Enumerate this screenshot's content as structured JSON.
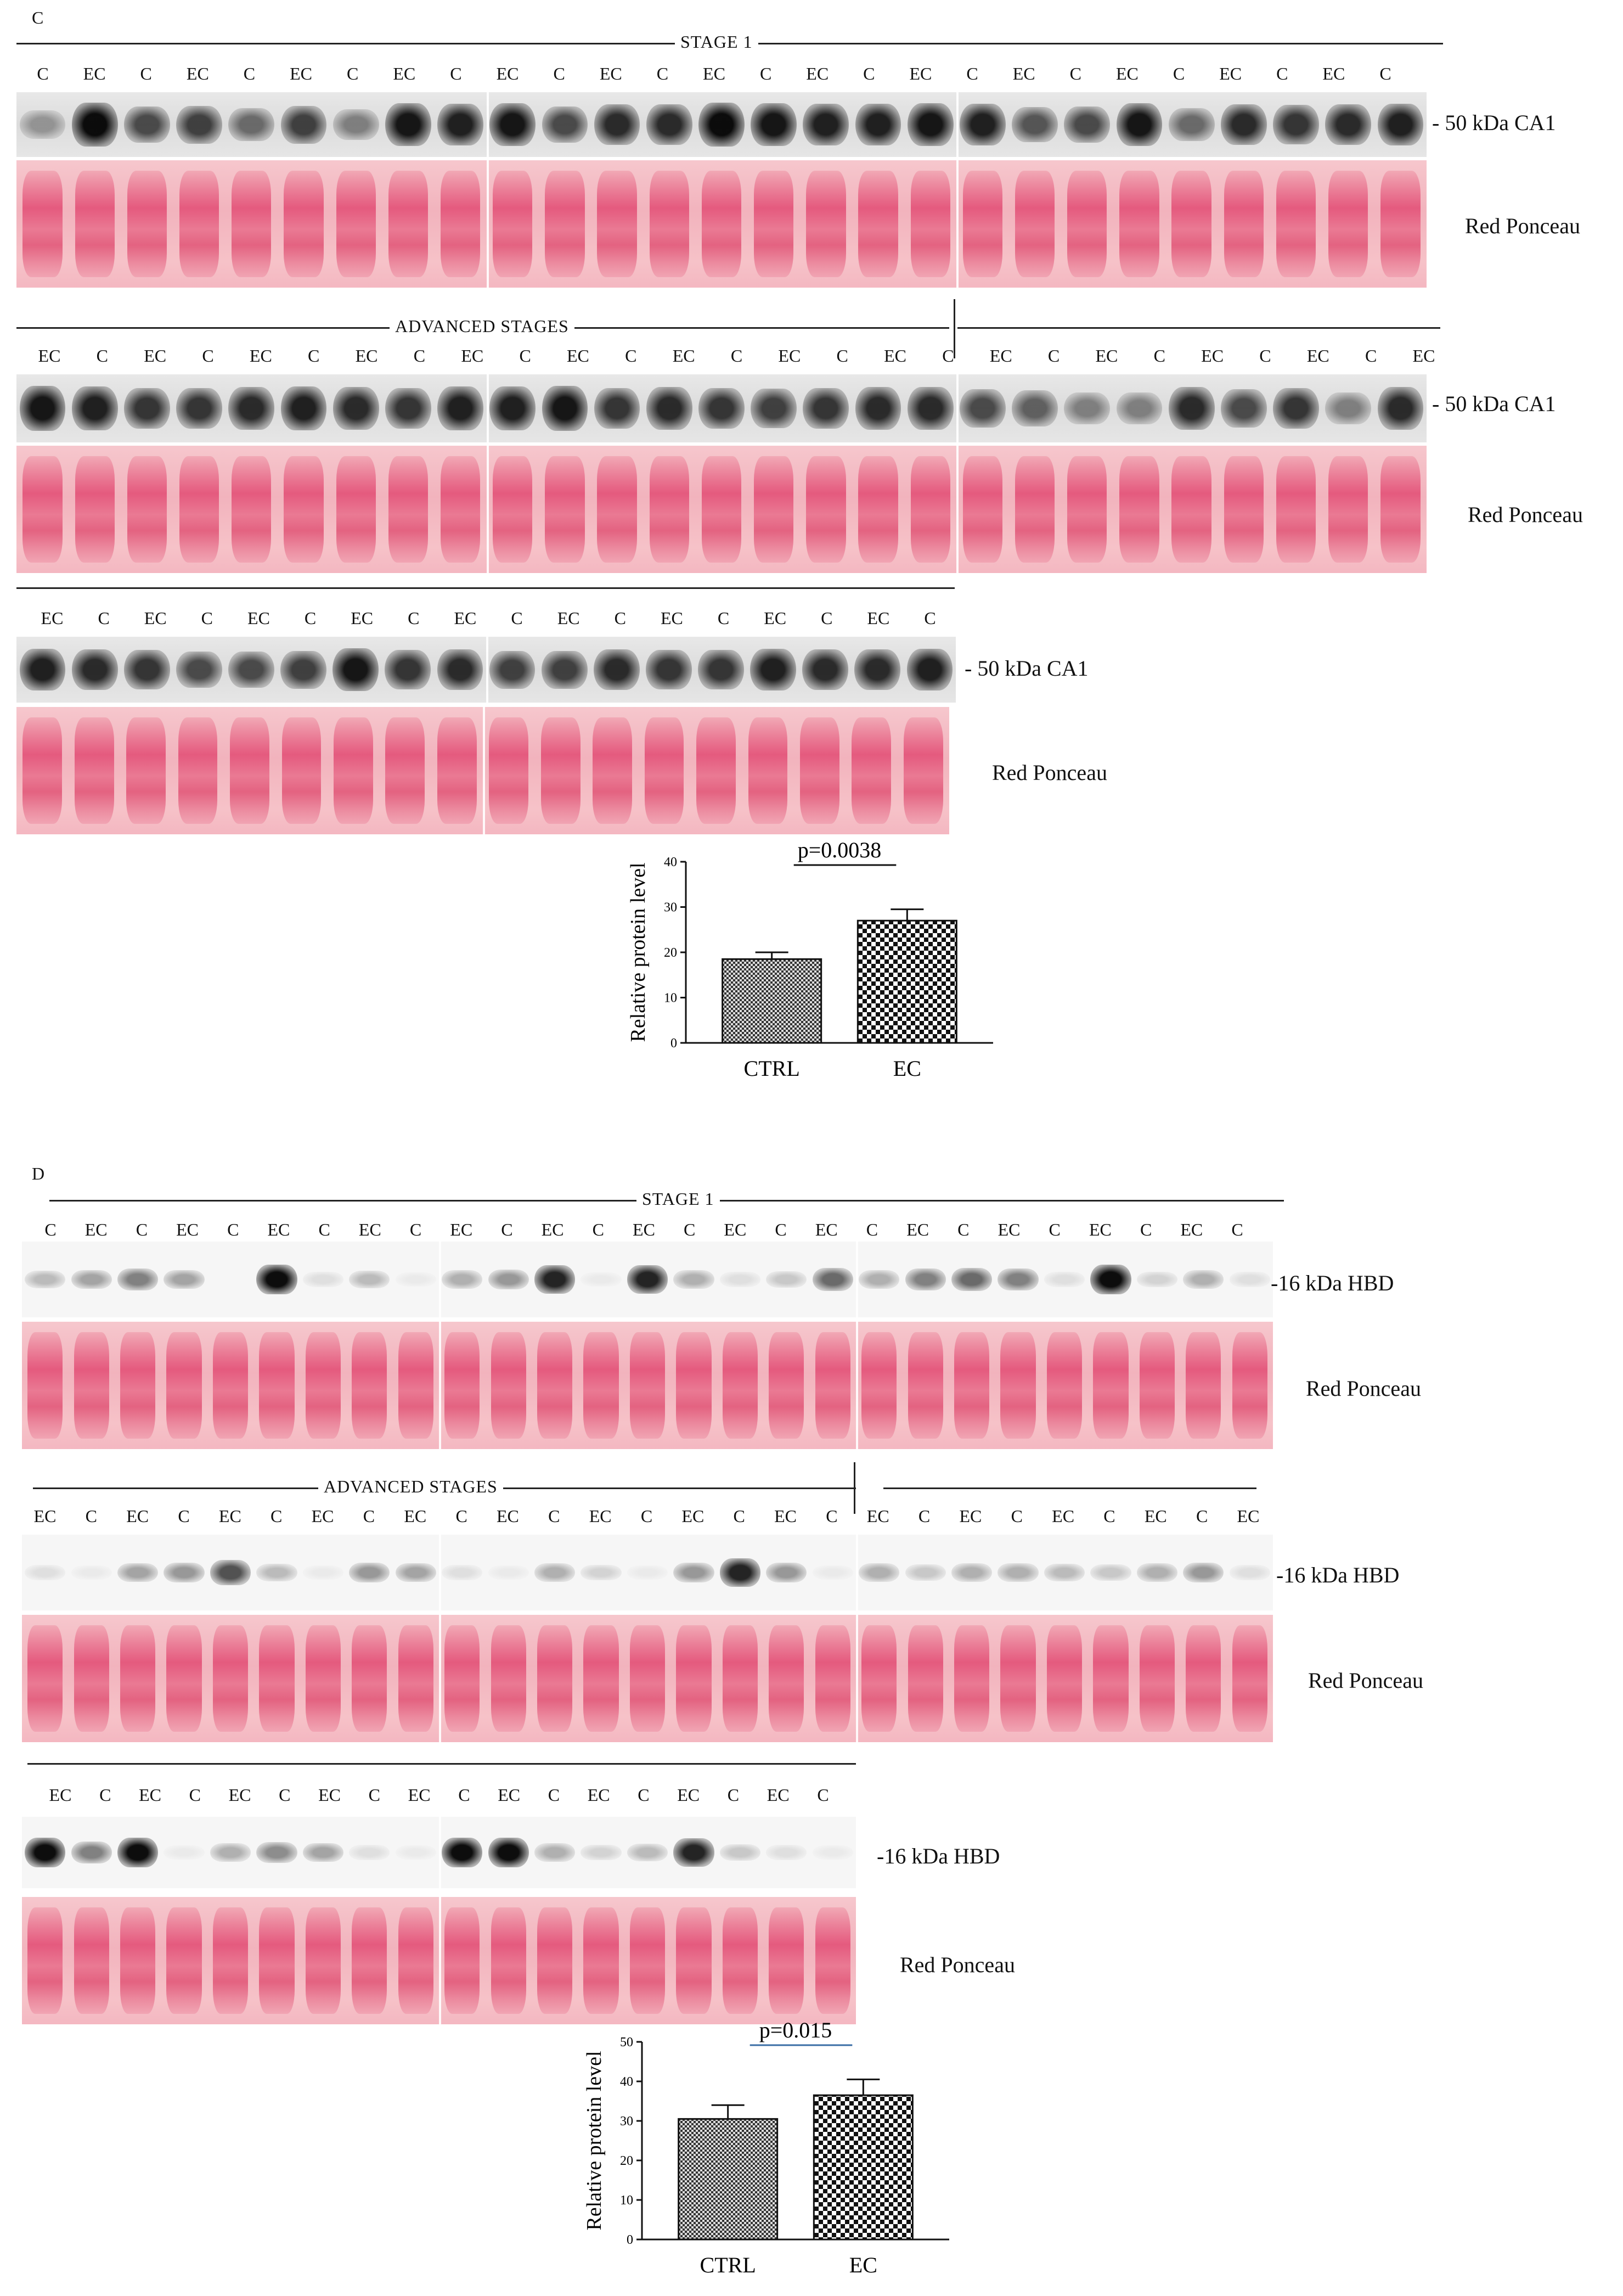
{
  "panel_c": {
    "letter": "C",
    "stage1": {
      "label": "STAGE 1",
      "lanes": [
        "C",
        "EC",
        "C",
        "EC",
        "C",
        "EC",
        "C",
        "EC",
        "C",
        "EC",
        "C",
        "EC",
        "C",
        "EC",
        "C",
        "EC",
        "C",
        "EC",
        "C",
        "EC",
        "C",
        "EC",
        "C",
        "EC",
        "C",
        "EC",
        "C"
      ],
      "marker": "- 50 kDa CA1",
      "ponceau": "Red Ponceau"
    },
    "advanced": {
      "label": "ADVANCED STAGES",
      "lanes": [
        "EC",
        "C",
        "EC",
        "C",
        "EC",
        "C",
        "EC",
        "C",
        "EC",
        "C",
        "EC",
        "C",
        "EC",
        "C",
        "EC",
        "C",
        "EC",
        "C",
        "EC",
        "C",
        "EC",
        "C",
        "EC",
        "C",
        "EC",
        "C",
        "EC"
      ],
      "marker": "- 50 kDa CA1",
      "ponceau": "Red Ponceau"
    },
    "extra": {
      "lanes": [
        "EC",
        "C",
        "EC",
        "C",
        "EC",
        "C",
        "EC",
        "C",
        "EC",
        "C",
        "EC",
        "C",
        "EC",
        "C",
        "EC",
        "C",
        "EC",
        "C"
      ],
      "marker": "- 50 kDa CA1",
      "ponceau": "Red Ponceau"
    },
    "chart_data": {
      "type": "bar",
      "categories": [
        "CTRL",
        "EC"
      ],
      "values": [
        18.5,
        27
      ],
      "errors": [
        1.5,
        2.5
      ],
      "ylabel": "Relative protein level",
      "ylim": [
        0,
        40
      ],
      "yticks": [
        "0",
        "10",
        "20",
        "30",
        "40"
      ],
      "annotation": "p=0.0038"
    }
  },
  "panel_d": {
    "letter": "D",
    "stage1": {
      "label": "STAGE 1",
      "lanes": [
        "C",
        "EC",
        "C",
        "EC",
        "C",
        "EC",
        "C",
        "EC",
        "C",
        "EC",
        "C",
        "EC",
        "C",
        "EC",
        "C",
        "EC",
        "C",
        "EC",
        "C",
        "EC",
        "C",
        "EC",
        "C",
        "EC",
        "C",
        "EC",
        "C"
      ],
      "marker": "-16 kDa  HBD",
      "ponceau": "Red Ponceau"
    },
    "advanced": {
      "label": "ADVANCED STAGES",
      "lanes": [
        "EC",
        "C",
        "EC",
        "C",
        "EC",
        "C",
        "EC",
        "C",
        "EC",
        "C",
        "EC",
        "C",
        "EC",
        "C",
        "EC",
        "C",
        "EC",
        "C",
        "EC",
        "C",
        "EC",
        "C",
        "EC",
        "C",
        "EC",
        "C",
        "EC"
      ],
      "marker": "-16 kDa  HBD",
      "ponceau": "Red Ponceau"
    },
    "extra": {
      "lanes": [
        "EC",
        "C",
        "EC",
        "C",
        "EC",
        "C",
        "EC",
        "C",
        "EC",
        "C",
        "EC",
        "C",
        "EC",
        "C",
        "EC",
        "C",
        "EC",
        "C"
      ],
      "marker": "-16 kDa  HBD",
      "ponceau": "Red Ponceau"
    },
    "chart_data": {
      "type": "bar",
      "categories": [
        "CTRL",
        "EC"
      ],
      "values": [
        30.5,
        36.5
      ],
      "errors": [
        3.5,
        4
      ],
      "ylabel": "Relative protein level",
      "ylim": [
        0,
        50
      ],
      "yticks": [
        "0",
        "10",
        "20",
        "30",
        "40",
        "50"
      ],
      "annotation": "p=0.015"
    }
  }
}
